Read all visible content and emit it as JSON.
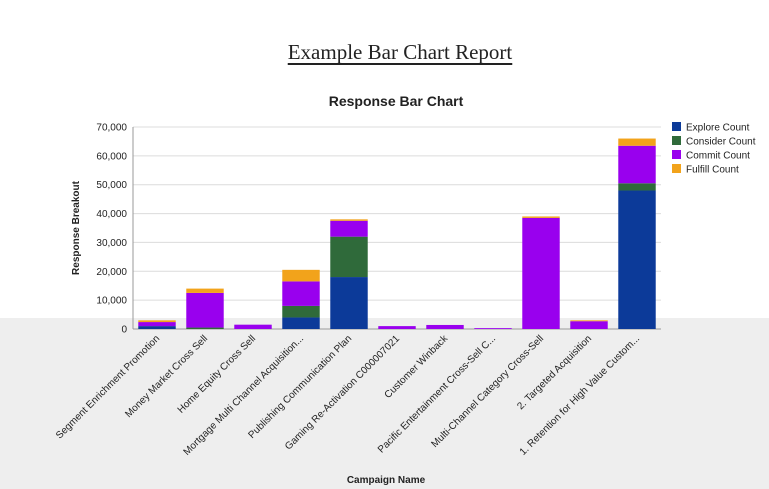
{
  "report": {
    "title": "Example Bar Chart Report"
  },
  "chart_data": {
    "type": "bar",
    "stacked": true,
    "title": "Response Bar Chart",
    "xlabel": "Campaign Name",
    "ylabel": "Response Breakout",
    "ylim": [
      0,
      70000
    ],
    "yticks": [
      "0",
      "10,000",
      "20,000",
      "30,000",
      "40,000",
      "50,000",
      "60,000",
      "70,000"
    ],
    "grid": true,
    "legend_position": "top-right",
    "categories": [
      "Segment Enrichment Promotion",
      "Money Market Cross Sell",
      "Home Equity Cross Sell",
      "Mortgage Multi Channel Acquisition...",
      "Publishing Communication Plan",
      "Gaming Re-Activation C000007021",
      "Customer Winback",
      "Pacific Entertainment Cross-Sell C...",
      "Multi-Channel Category Cross-Sell",
      "2. Targeted Acquisition",
      "1. Retention for High Value Custom..."
    ],
    "series": [
      {
        "name": "Explore Count",
        "color": "#0c3a99",
        "values": [
          1000,
          0,
          0,
          4000,
          18000,
          0,
          0,
          0,
          0,
          0,
          48000
        ]
      },
      {
        "name": "Consider Count",
        "color": "#2f6a3a",
        "values": [
          0,
          500,
          0,
          4000,
          14000,
          0,
          0,
          0,
          0,
          0,
          2500
        ]
      },
      {
        "name": "Commit Count",
        "color": "#9900ee",
        "values": [
          1400,
          12000,
          1500,
          8500,
          5500,
          1000,
          1400,
          300,
          38500,
          2700,
          13000
        ]
      },
      {
        "name": "Fulfill Count",
        "color": "#f2a31b",
        "values": [
          600,
          1500,
          0,
          4000,
          500,
          0,
          0,
          0,
          500,
          300,
          2500
        ]
      }
    ]
  }
}
